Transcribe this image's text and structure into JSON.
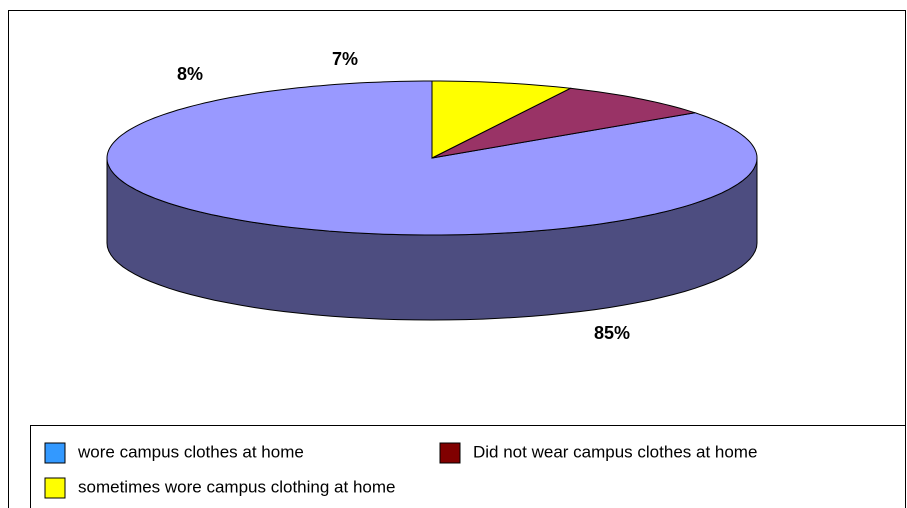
{
  "chart_data": {
    "type": "pie3d",
    "categories": [
      "wore campus clothes at home",
      "Did not wear campus clothes at home",
      "sometimes wore campus clothing at home"
    ],
    "values": [
      85,
      8,
      7
    ],
    "value_labels": [
      "85%",
      "8%",
      "7%"
    ],
    "colors": [
      "#9999ff",
      "#993366",
      "#ffff00"
    ],
    "legend_colors": [
      "#3399ff",
      "#800000",
      "#ffff00"
    ],
    "legend": "bottom"
  }
}
